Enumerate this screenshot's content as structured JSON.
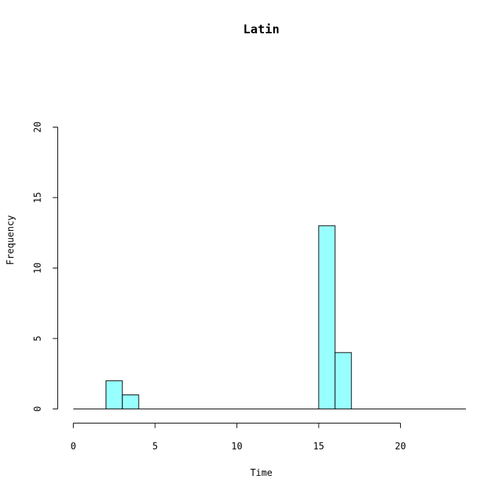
{
  "chart_data": {
    "type": "bar",
    "title": "Latin",
    "xlabel": "Time",
    "ylabel": "Frequency",
    "bins": [
      {
        "start": 2,
        "end": 3,
        "count": 2
      },
      {
        "start": 3,
        "end": 4,
        "count": 1
      },
      {
        "start": 15,
        "end": 16,
        "count": 13
      },
      {
        "start": 16,
        "end": 17,
        "count": 4
      }
    ],
    "xlim": [
      0,
      24
    ],
    "ylim": [
      0,
      20
    ],
    "x_ticks": [
      0,
      5,
      10,
      15,
      20
    ],
    "y_ticks": [
      0,
      5,
      10,
      15,
      20
    ],
    "baseline_range": [
      0,
      24
    ],
    "bar_color": "#98FFFF",
    "grid": false
  }
}
